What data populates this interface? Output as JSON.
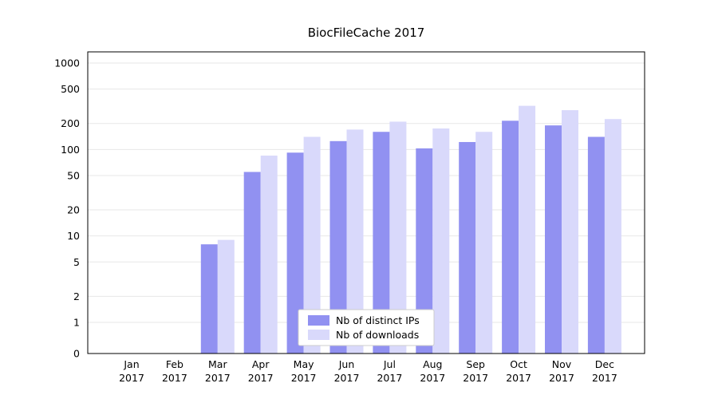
{
  "chart": {
    "title": "BiocFileCache 2017",
    "year": "2017",
    "chart_data": {
      "type": "bar",
      "title": "BiocFileCache 2017",
      "xlabel": "",
      "ylabel": "",
      "yscale": "symlog",
      "ylim": [
        0,
        1000
      ],
      "grid": "horizontal-major",
      "legend_position": "bottom-center-inside",
      "categories": [
        "Jan",
        "Feb",
        "Mar",
        "Apr",
        "May",
        "Jun",
        "Jul",
        "Aug",
        "Sep",
        "Oct",
        "Nov",
        "Dec"
      ],
      "series": [
        {
          "name": "Nb of distinct IPs",
          "color": "#9191f1",
          "values": [
            0,
            0,
            8,
            55,
            92,
            125,
            160,
            103,
            122,
            215,
            190,
            140
          ]
        },
        {
          "name": "Nb of downloads",
          "color": "#d9d9fb",
          "values": [
            0,
            0,
            9,
            85,
            140,
            170,
            210,
            175,
            160,
            320,
            285,
            225
          ]
        }
      ]
    },
    "categories": [
      "Jan",
      "Feb",
      "Mar",
      "Apr",
      "May",
      "Jun",
      "Jul",
      "Aug",
      "Sep",
      "Oct",
      "Nov",
      "Dec"
    ],
    "series": [
      {
        "name": "Nb of distinct IPs",
        "color": "#9191f1",
        "values": [
          0,
          0,
          8,
          55,
          92,
          125,
          160,
          103,
          122,
          215,
          190,
          140
        ]
      },
      {
        "name": "Nb of downloads",
        "color": "#d9d9fb",
        "values": [
          0,
          0,
          9,
          85,
          140,
          170,
          210,
          175,
          160,
          320,
          285,
          225
        ]
      }
    ],
    "yticks": [
      0,
      1,
      2,
      5,
      10,
      20,
      50,
      100,
      200,
      500,
      1000
    ],
    "colors": {
      "grid": "#e7e7e7",
      "axis_border": "#000000",
      "legend_border": "#cccccc",
      "background": "#ffffff"
    }
  }
}
